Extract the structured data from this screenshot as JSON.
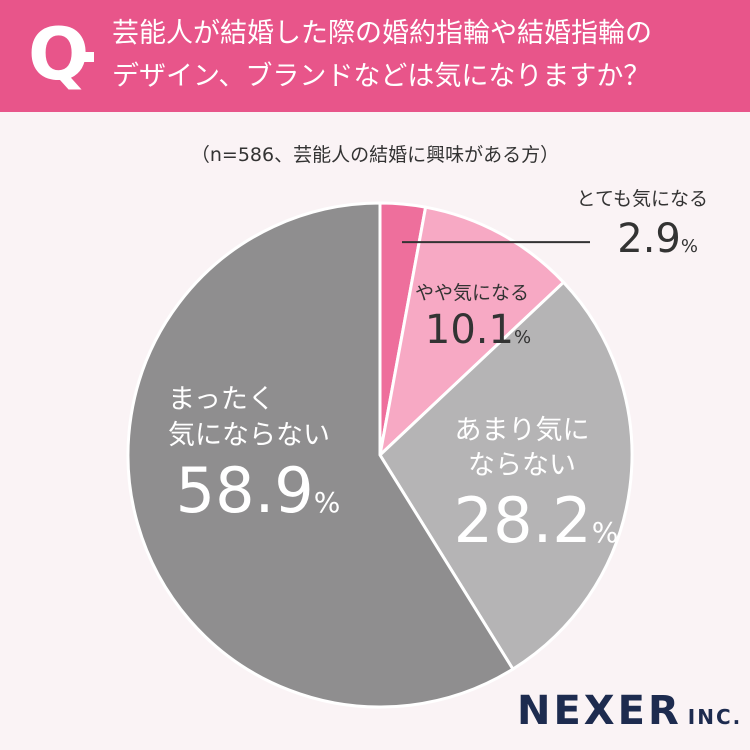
{
  "question": {
    "mark": "Q",
    "line1": "芸能人が結婚した際の婚約指輪や結婚指輪の",
    "line2": "デザイン、ブランドなどは気になりますか？"
  },
  "sample_note": "（n=586、芸能人の結婚に興味がある方）",
  "chart_data": {
    "type": "pie",
    "slices": [
      {
        "label": "とても気になる",
        "value": 2.9,
        "value_text": "2.9",
        "unit": "%",
        "color": "#ee6f9c"
      },
      {
        "label": "やや気になる",
        "value": 10.1,
        "value_text": "10.1",
        "unit": "%",
        "color": "#f7a9c4"
      },
      {
        "label": "あまり気にならない",
        "label_lines": [
          "あまり気に",
          "ならない"
        ],
        "value": 28.2,
        "value_text": "28.2",
        "unit": "%",
        "color": "#b5b4b5"
      },
      {
        "label": "まったく気にならない",
        "label_lines": [
          "まったく",
          "気にならない"
        ],
        "value": 58.9,
        "value_text": "58.9",
        "unit": "%",
        "color": "#8f8e8f"
      }
    ],
    "start_angle": "12 o'clock",
    "direction": "clockwise"
  },
  "brand": {
    "name": "NEXER",
    "suffix": "INC."
  }
}
